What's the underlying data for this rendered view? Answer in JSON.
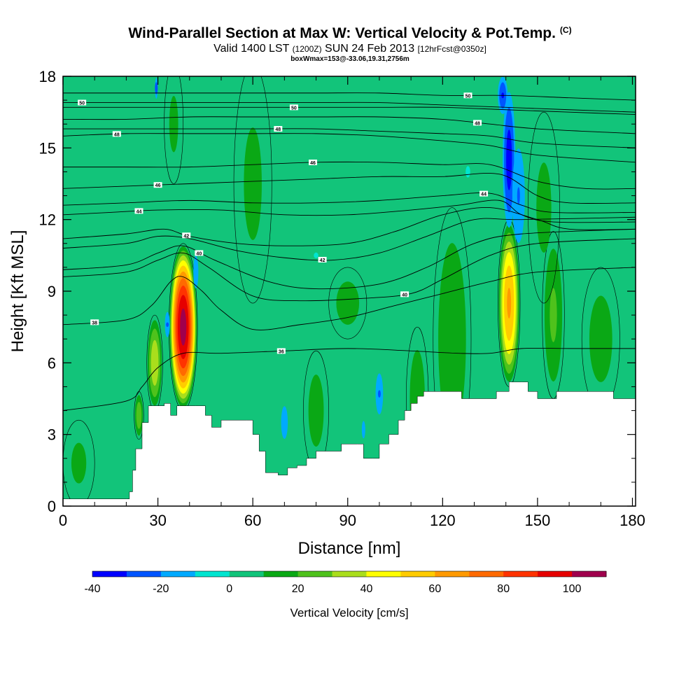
{
  "title": "Wind-Parallel Section at Max W: Vertical Velocity & Pot.Temp.",
  "copyright": "(C)",
  "subtitle_main": "Valid 1400 LST",
  "subtitle_utc": "(1200Z)",
  "subtitle_date": "SUN 24 Feb 2013",
  "subtitle_fcst": "[12hrFcst@0350z]",
  "box_info": "boxWmax=153@-33.06,19.31,2756m",
  "chart_data": {
    "type": "heatmap",
    "xlabel": "Distance [nm]",
    "ylabel": "Height [Kft MSL]",
    "xlim": [
      0,
      181
    ],
    "ylim": [
      0,
      18
    ],
    "xticks": [
      0,
      30,
      60,
      90,
      120,
      150,
      180
    ],
    "yticks": [
      0,
      3,
      6,
      9,
      12,
      15,
      18
    ],
    "colorbar": {
      "label": "Vertical Velocity [cm/s]",
      "ticks": [
        -40,
        -20,
        0,
        20,
        40,
        60,
        80,
        100
      ],
      "levels": [
        -40,
        -30,
        -20,
        -10,
        0,
        10,
        20,
        30,
        40,
        50,
        60,
        70,
        80,
        90,
        100,
        110
      ],
      "colors": [
        "#0000ff",
        "#0055ff",
        "#00aaff",
        "#00e5d0",
        "#12c47a",
        "#0aa815",
        "#4fc21c",
        "#aade1c",
        "#ffff00",
        "#ffcc00",
        "#ff9a00",
        "#ff6a00",
        "#ff3300",
        "#e60000",
        "#a0004d"
      ]
    },
    "background_w_cms": 3,
    "terrain_kft": [
      [
        0,
        0.3
      ],
      [
        20,
        0.3
      ],
      [
        21,
        0.6
      ],
      [
        22,
        1.5
      ],
      [
        23,
        2.4
      ],
      [
        25,
        3.5
      ],
      [
        27,
        4.2
      ],
      [
        32,
        4.3
      ],
      [
        34,
        3.8
      ],
      [
        36,
        4.2
      ],
      [
        42,
        4.2
      ],
      [
        45,
        3.8
      ],
      [
        47,
        3.3
      ],
      [
        50,
        3.6
      ],
      [
        58,
        3.6
      ],
      [
        60,
        3.0
      ],
      [
        62,
        2.3
      ],
      [
        64,
        1.4
      ],
      [
        68,
        1.3
      ],
      [
        71,
        1.6
      ],
      [
        74,
        1.7
      ],
      [
        77,
        2.0
      ],
      [
        80,
        2.3
      ],
      [
        83,
        2.3
      ],
      [
        88,
        2.6
      ],
      [
        93,
        2.6
      ],
      [
        95,
        2.0
      ],
      [
        98,
        2.0
      ],
      [
        100,
        2.6
      ],
      [
        103,
        3.0
      ],
      [
        106,
        3.6
      ],
      [
        108,
        4.0
      ],
      [
        110,
        4.3
      ],
      [
        112,
        4.6
      ],
      [
        114,
        4.8
      ],
      [
        125,
        4.8
      ],
      [
        126,
        4.5
      ],
      [
        134,
        4.5
      ],
      [
        137,
        4.8
      ],
      [
        141,
        5.2
      ],
      [
        145,
        5.2
      ],
      [
        147,
        4.8
      ],
      [
        150,
        4.5
      ],
      [
        156,
        4.8
      ],
      [
        173,
        4.8
      ],
      [
        174,
        4.5
      ],
      [
        181,
        4.5
      ]
    ],
    "w_cells": [
      {
        "x": 38,
        "y": 7.5,
        "rx": 4.5,
        "ry": 3.5,
        "w": 105
      },
      {
        "x": 141,
        "y": 8.5,
        "rx": 3.5,
        "ry": 3.5,
        "w": 62
      },
      {
        "x": 29,
        "y": 6.0,
        "rx": 2.5,
        "ry": 2.0,
        "w": 38
      },
      {
        "x": 24,
        "y": 3.8,
        "rx": 1.5,
        "ry": 1.0,
        "w": 28
      },
      {
        "x": 155,
        "y": 8.0,
        "rx": 3.5,
        "ry": 3.5,
        "w": 22
      },
      {
        "x": 123,
        "y": 7.0,
        "rx": 6.0,
        "ry": 5.5,
        "w": 18
      },
      {
        "x": 170,
        "y": 7.0,
        "rx": 6.0,
        "ry": 3.0,
        "w": 14
      },
      {
        "x": 112,
        "y": 4.5,
        "rx": 3.5,
        "ry": 3.0,
        "w": 16
      },
      {
        "x": 80,
        "y": 4.0,
        "rx": 4.0,
        "ry": 2.5,
        "w": 14
      },
      {
        "x": 90,
        "y": 8.5,
        "rx": 6.0,
        "ry": 1.5,
        "w": 14
      },
      {
        "x": 5,
        "y": 1.8,
        "rx": 5.0,
        "ry": 1.8,
        "w": 12
      },
      {
        "x": 60,
        "y": 13.5,
        "rx": 6.0,
        "ry": 5.0,
        "w": 12
      },
      {
        "x": 152,
        "y": 12.5,
        "rx": 5.0,
        "ry": 4.0,
        "w": 12
      },
      {
        "x": 35,
        "y": 16.0,
        "rx": 3.0,
        "ry": 2.5,
        "w": 12
      },
      {
        "x": 141,
        "y": 14.5,
        "rx": 2.5,
        "ry": 3.5,
        "w": -35
      },
      {
        "x": 144,
        "y": 13.0,
        "rx": 3.0,
        "ry": 3.0,
        "w": -20
      },
      {
        "x": 139,
        "y": 17.2,
        "rx": 2.0,
        "ry": 1.0,
        "w": -30
      },
      {
        "x": 29.5,
        "y": 17.5,
        "rx": 0.6,
        "ry": 0.6,
        "w": -25
      },
      {
        "x": 33,
        "y": 7.6,
        "rx": 1.2,
        "ry": 0.8,
        "w": -20
      },
      {
        "x": 42,
        "y": 9.8,
        "rx": 1.5,
        "ry": 1.3,
        "w": -15
      },
      {
        "x": 70,
        "y": 3.5,
        "rx": 2.0,
        "ry": 1.3,
        "w": -15
      },
      {
        "x": 100,
        "y": 4.7,
        "rx": 1.8,
        "ry": 1.3,
        "w": -20
      },
      {
        "x": 95,
        "y": 3.2,
        "rx": 1.5,
        "ry": 1.0,
        "w": -12
      },
      {
        "x": 80,
        "y": 10.5,
        "rx": 6.0,
        "ry": 1.0,
        "w": -8
      },
      {
        "x": 128,
        "y": 14.0,
        "rx": 6.0,
        "ry": 2.0,
        "w": -6
      }
    ],
    "theta_contours": [
      {
        "label": "36",
        "label_x": 69,
        "points": [
          [
            0,
            4.0
          ],
          [
            20,
            4.4
          ],
          [
            25,
            5.0
          ],
          [
            30,
            5.8
          ],
          [
            38,
            6.4
          ],
          [
            50,
            6.4
          ],
          [
            70,
            6.5
          ],
          [
            90,
            6.6
          ],
          [
            110,
            6.5
          ],
          [
            125,
            6.4
          ],
          [
            135,
            6.4
          ],
          [
            145,
            6.6
          ],
          [
            160,
            6.6
          ],
          [
            181,
            6.6
          ]
        ]
      },
      {
        "label": "38",
        "label_x": 10,
        "points": [
          [
            0,
            7.6
          ],
          [
            20,
            7.8
          ],
          [
            28,
            8.4
          ],
          [
            34,
            9.4
          ],
          [
            38,
            9.6
          ],
          [
            44,
            9.0
          ],
          [
            50,
            8.2
          ],
          [
            60,
            7.4
          ],
          [
            75,
            7.6
          ],
          [
            90,
            7.9
          ],
          [
            105,
            8.4
          ],
          [
            120,
            8.9
          ],
          [
            135,
            9.4
          ],
          [
            150,
            9.8
          ],
          [
            181,
            10.0
          ]
        ]
      },
      {
        "label": "40",
        "label_x": 108,
        "points": [
          [
            0,
            9.6
          ],
          [
            20,
            9.8
          ],
          [
            30,
            10.3
          ],
          [
            38,
            10.6
          ],
          [
            46,
            10.0
          ],
          [
            60,
            8.8
          ],
          [
            75,
            8.6
          ],
          [
            95,
            8.7
          ],
          [
            110,
            8.9
          ],
          [
            120,
            9.5
          ],
          [
            135,
            10.5
          ],
          [
            150,
            11.0
          ],
          [
            181,
            11.2
          ]
        ]
      },
      {
        "label": "40",
        "label_x": 43,
        "points": [
          [
            0,
            9.9
          ],
          [
            20,
            10.1
          ],
          [
            30,
            10.6
          ],
          [
            38,
            10.9
          ],
          [
            48,
            10.3
          ],
          [
            65,
            9.4
          ],
          [
            80,
            9.1
          ],
          [
            100,
            9.3
          ],
          [
            115,
            10.0
          ],
          [
            130,
            11.0
          ],
          [
            145,
            11.4
          ],
          [
            181,
            11.6
          ]
        ]
      },
      {
        "label": "42",
        "label_x": 82,
        "points": [
          [
            0,
            10.8
          ],
          [
            20,
            11.0
          ],
          [
            30,
            11.3
          ],
          [
            40,
            11.2
          ],
          [
            55,
            10.7
          ],
          [
            70,
            10.4
          ],
          [
            85,
            10.3
          ],
          [
            100,
            10.6
          ],
          [
            115,
            11.3
          ],
          [
            130,
            12.0
          ],
          [
            145,
            12.0
          ],
          [
            181,
            12.1
          ]
        ]
      },
      {
        "label": "42",
        "label_x": 39,
        "points": [
          [
            0,
            11.2
          ],
          [
            20,
            11.4
          ],
          [
            32,
            11.6
          ],
          [
            40,
            11.3
          ],
          [
            55,
            11.0
          ],
          [
            70,
            10.9
          ],
          [
            90,
            11.0
          ],
          [
            105,
            11.5
          ],
          [
            120,
            12.2
          ],
          [
            135,
            12.5
          ],
          [
            150,
            12.0
          ],
          [
            160,
            11.6
          ],
          [
            181,
            11.6
          ]
        ]
      },
      {
        "label": "44",
        "label_x": 24,
        "points": [
          [
            0,
            12.2
          ],
          [
            15,
            12.3
          ],
          [
            30,
            12.4
          ],
          [
            50,
            12.4
          ],
          [
            70,
            12.2
          ],
          [
            90,
            12.2
          ],
          [
            110,
            12.4
          ],
          [
            125,
            12.6
          ],
          [
            138,
            12.8
          ],
          [
            145,
            12.2
          ],
          [
            155,
            11.9
          ],
          [
            181,
            11.9
          ]
        ]
      },
      {
        "label": "44",
        "label_x": 133,
        "points": [
          [
            0,
            12.6
          ],
          [
            20,
            12.7
          ],
          [
            40,
            12.8
          ],
          [
            60,
            12.7
          ],
          [
            80,
            12.7
          ],
          [
            100,
            12.8
          ],
          [
            120,
            13.0
          ],
          [
            135,
            13.1
          ],
          [
            145,
            12.6
          ],
          [
            155,
            12.3
          ],
          [
            181,
            12.3
          ]
        ]
      },
      {
        "label": "46",
        "label_x": 30,
        "points": [
          [
            0,
            13.3
          ],
          [
            20,
            13.4
          ],
          [
            40,
            13.5
          ],
          [
            60,
            13.6
          ],
          [
            80,
            13.7
          ],
          [
            100,
            13.8
          ],
          [
            120,
            13.8
          ],
          [
            138,
            13.9
          ],
          [
            150,
            13.0
          ],
          [
            160,
            12.7
          ],
          [
            181,
            12.7
          ]
        ]
      },
      {
        "label": "46",
        "label_x": 79,
        "points": [
          [
            0,
            14.2
          ],
          [
            20,
            14.2
          ],
          [
            40,
            14.2
          ],
          [
            60,
            14.3
          ],
          [
            80,
            14.4
          ],
          [
            100,
            14.4
          ],
          [
            120,
            14.3
          ],
          [
            135,
            14.3
          ],
          [
            150,
            13.6
          ],
          [
            165,
            13.3
          ],
          [
            181,
            13.3
          ]
        ]
      },
      {
        "label": "48",
        "label_x": 17,
        "points": [
          [
            0,
            15.5
          ],
          [
            20,
            15.6
          ],
          [
            40,
            15.6
          ],
          [
            60,
            15.6
          ],
          [
            80,
            15.6
          ],
          [
            100,
            15.5
          ],
          [
            120,
            15.3
          ],
          [
            135,
            15.1
          ],
          [
            150,
            14.7
          ],
          [
            181,
            14.4
          ]
        ]
      },
      {
        "label": "48",
        "label_x": 68,
        "points": [
          [
            0,
            15.8
          ],
          [
            20,
            15.8
          ],
          [
            40,
            15.8
          ],
          [
            60,
            15.8
          ],
          [
            80,
            15.8
          ],
          [
            100,
            15.7
          ],
          [
            120,
            15.6
          ],
          [
            135,
            15.5
          ],
          [
            150,
            15.2
          ],
          [
            181,
            15.0
          ]
        ]
      },
      {
        "label": "48",
        "label_x": 131,
        "points": [
          [
            0,
            16.2
          ],
          [
            20,
            16.2
          ],
          [
            40,
            16.3
          ],
          [
            60,
            16.3
          ],
          [
            80,
            16.3
          ],
          [
            100,
            16.3
          ],
          [
            120,
            16.2
          ],
          [
            135,
            16.0
          ],
          [
            150,
            15.8
          ],
          [
            181,
            15.6
          ]
        ]
      },
      {
        "label": "50",
        "label_x": 6,
        "points": [
          [
            0,
            16.9
          ],
          [
            20,
            16.9
          ],
          [
            40,
            16.9
          ],
          [
            60,
            16.9
          ],
          [
            80,
            16.9
          ],
          [
            100,
            16.9
          ],
          [
            120,
            16.8
          ],
          [
            140,
            16.7
          ],
          [
            160,
            16.6
          ],
          [
            181,
            16.5
          ]
        ]
      },
      {
        "label": "50",
        "label_x": 73,
        "points": [
          [
            0,
            16.7
          ],
          [
            20,
            16.7
          ],
          [
            40,
            16.7
          ],
          [
            60,
            16.7
          ],
          [
            80,
            16.7
          ],
          [
            100,
            16.7
          ],
          [
            120,
            16.7
          ],
          [
            140,
            16.6
          ],
          [
            160,
            16.5
          ],
          [
            181,
            16.4
          ]
        ]
      },
      {
        "label": "50",
        "label_x": 128,
        "points": [
          [
            0,
            17.3
          ],
          [
            20,
            17.3
          ],
          [
            40,
            17.3
          ],
          [
            60,
            17.3
          ],
          [
            80,
            17.3
          ],
          [
            100,
            17.3
          ],
          [
            120,
            17.2
          ],
          [
            140,
            17.2
          ],
          [
            160,
            17.1
          ],
          [
            181,
            17.0
          ]
        ]
      }
    ]
  }
}
